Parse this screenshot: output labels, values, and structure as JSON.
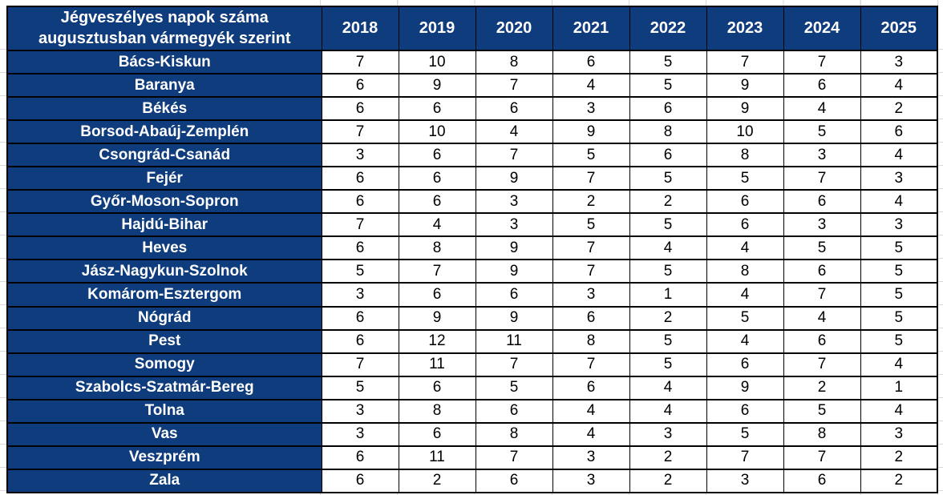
{
  "chart_data": {
    "type": "table",
    "title": "Jégveszélyes napok száma augusztusban vármegyék szerint",
    "columns": [
      "2018",
      "2019",
      "2020",
      "2021",
      "2022",
      "2023",
      "2024",
      "2025"
    ],
    "rows": [
      {
        "label": "Bács-Kiskun",
        "values": [
          7,
          10,
          8,
          6,
          5,
          7,
          7,
          3
        ]
      },
      {
        "label": "Baranya",
        "values": [
          6,
          9,
          7,
          4,
          5,
          9,
          6,
          4
        ]
      },
      {
        "label": "Békés",
        "values": [
          6,
          6,
          6,
          3,
          6,
          9,
          4,
          2
        ]
      },
      {
        "label": "Borsod-Abaúj-Zemplén",
        "values": [
          7,
          10,
          4,
          9,
          8,
          10,
          5,
          6
        ]
      },
      {
        "label": "Csongrád-Csanád",
        "values": [
          3,
          6,
          7,
          5,
          6,
          8,
          3,
          4
        ]
      },
      {
        "label": "Fejér",
        "values": [
          6,
          6,
          9,
          7,
          5,
          5,
          7,
          3
        ]
      },
      {
        "label": "Győr-Moson-Sopron",
        "values": [
          6,
          6,
          3,
          2,
          2,
          6,
          6,
          4
        ]
      },
      {
        "label": "Hajdú-Bihar",
        "values": [
          7,
          4,
          3,
          5,
          5,
          6,
          3,
          3
        ]
      },
      {
        "label": "Heves",
        "values": [
          6,
          8,
          9,
          7,
          4,
          4,
          5,
          5
        ]
      },
      {
        "label": "Jász-Nagykun-Szolnok",
        "values": [
          5,
          7,
          9,
          7,
          5,
          8,
          6,
          5
        ]
      },
      {
        "label": "Komárom-Esztergom",
        "values": [
          3,
          6,
          6,
          3,
          1,
          4,
          7,
          5
        ]
      },
      {
        "label": "Nógrád",
        "values": [
          6,
          9,
          9,
          6,
          2,
          5,
          4,
          5
        ]
      },
      {
        "label": "Pest",
        "values": [
          6,
          12,
          11,
          8,
          5,
          4,
          6,
          5
        ]
      },
      {
        "label": "Somogy",
        "values": [
          7,
          11,
          7,
          7,
          5,
          6,
          7,
          4
        ]
      },
      {
        "label": "Szabolcs-Szatmár-Bereg",
        "values": [
          5,
          6,
          5,
          6,
          4,
          9,
          2,
          1
        ]
      },
      {
        "label": "Tolna",
        "values": [
          3,
          8,
          6,
          4,
          4,
          6,
          5,
          4
        ]
      },
      {
        "label": "Vas",
        "values": [
          3,
          6,
          8,
          4,
          3,
          5,
          8,
          3
        ]
      },
      {
        "label": "Veszprém",
        "values": [
          6,
          11,
          7,
          3,
          2,
          7,
          7,
          2
        ]
      },
      {
        "label": "Zala",
        "values": [
          6,
          2,
          6,
          3,
          2,
          3,
          6,
          2
        ]
      }
    ],
    "layout_hints": {
      "header_row_position": "top",
      "label_column_position": "left",
      "grid": "on"
    }
  },
  "colors": {
    "header_bg": "#0F3C7C",
    "header_text": "#FFFFFF",
    "cell_bg": "#FFFFFF",
    "cell_text": "#000000",
    "table_border": "#000000",
    "sheet_gridline": "#D9D9D9"
  }
}
